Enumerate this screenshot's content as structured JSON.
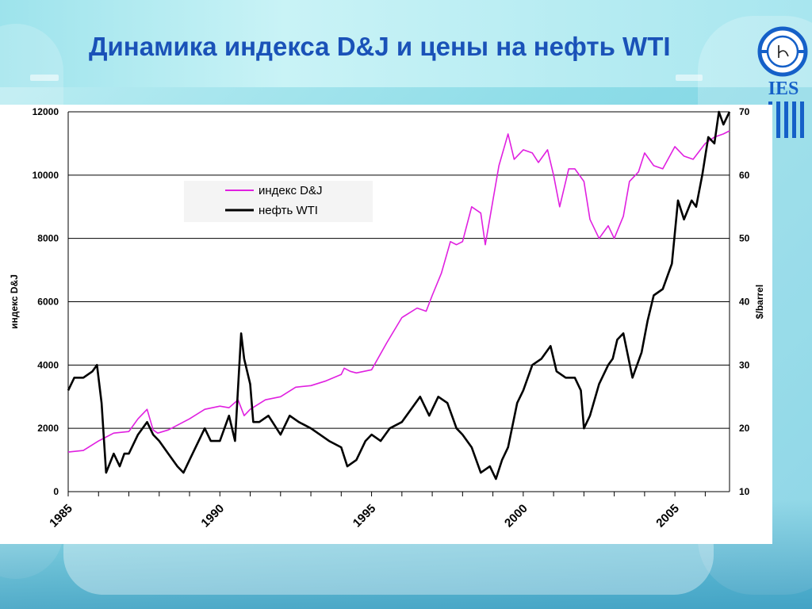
{
  "slide": {
    "title": "Динамика индекса D&J и цены на нефть WTI",
    "logo_text": "IES"
  },
  "colors": {
    "title": "#1a52b8",
    "dj_series": "#e020e0",
    "wti_series": "#000000",
    "logo_blue": "#1560c8"
  },
  "icons": {
    "logo": "ies-logo-icon"
  },
  "chart_data": {
    "type": "line",
    "title": "",
    "xlabel": "",
    "ylabel_left": "индекс D&J",
    "ylabel_right": "$/barrel",
    "xlim": [
      1985.0,
      2006.8
    ],
    "ylim_left": [
      0,
      12000
    ],
    "ylim_right": [
      10,
      70
    ],
    "yticks_left": [
      0,
      2000,
      4000,
      6000,
      8000,
      10000,
      12000
    ],
    "yticks_right": [
      10,
      20,
      30,
      40,
      50,
      60,
      70
    ],
    "xtick_labels": [
      "1985",
      "1990",
      "1995",
      "2000",
      "2005"
    ],
    "xtick_values": [
      1985,
      1990,
      1995,
      2000,
      2005
    ],
    "grid": "horizontal",
    "legend_position": "upper-left",
    "series": [
      {
        "name": "индекс D&J",
        "axis": "left",
        "x": [
          1985.0,
          1985.5,
          1986.0,
          1986.5,
          1987.0,
          1987.3,
          1987.6,
          1987.8,
          1987.95,
          1988.3,
          1988.6,
          1989.0,
          1989.5,
          1990.0,
          1990.3,
          1990.6,
          1990.8,
          1991.0,
          1991.5,
          1992.0,
          1992.5,
          1993.0,
          1993.5,
          1994.0,
          1994.1,
          1994.3,
          1994.5,
          1995.0,
          1995.5,
          1996.0,
          1996.5,
          1996.8,
          1997.0,
          1997.3,
          1997.6,
          1997.8,
          1998.0,
          1998.3,
          1998.6,
          1998.75,
          1999.0,
          1999.2,
          1999.5,
          1999.7,
          2000.0,
          2000.3,
          2000.5,
          2000.8,
          2001.0,
          2001.2,
          2001.5,
          2001.7,
          2002.0,
          2002.2,
          2002.5,
          2002.8,
          2003.0,
          2003.3,
          2003.5,
          2003.8,
          2004.0,
          2004.3,
          2004.6,
          2005.0,
          2005.3,
          2005.6,
          2006.0,
          2006.3,
          2006.6,
          2006.8
        ],
        "y": [
          1250,
          1300,
          1600,
          1850,
          1900,
          2300,
          2600,
          1950,
          1850,
          1950,
          2100,
          2300,
          2600,
          2700,
          2650,
          2900,
          2400,
          2600,
          2900,
          3000,
          3300,
          3350,
          3500,
          3700,
          3900,
          3800,
          3750,
          3850,
          4700,
          5500,
          5800,
          5700,
          6200,
          6900,
          7900,
          7800,
          7900,
          9000,
          8800,
          7800,
          9200,
          10300,
          11300,
          10500,
          10800,
          10700,
          10400,
          10800,
          10000,
          9000,
          10200,
          10200,
          9800,
          8600,
          8000,
          8400,
          8000,
          8700,
          9800,
          10100,
          10700,
          10300,
          10200,
          10900,
          10600,
          10500,
          11000,
          11200,
          11300,
          11400
        ]
      },
      {
        "name": "нефть WTI",
        "axis": "right",
        "x": [
          1985.0,
          1985.2,
          1985.5,
          1985.8,
          1985.95,
          1986.1,
          1986.25,
          1986.5,
          1986.7,
          1986.85,
          1987.0,
          1987.3,
          1987.6,
          1987.8,
          1988.0,
          1988.3,
          1988.6,
          1988.8,
          1989.0,
          1989.2,
          1989.5,
          1989.7,
          1990.0,
          1990.3,
          1990.5,
          1990.7,
          1990.8,
          1991.0,
          1991.1,
          1991.3,
          1991.6,
          1992.0,
          1992.3,
          1992.6,
          1993.0,
          1993.3,
          1993.6,
          1994.0,
          1994.2,
          1994.5,
          1994.8,
          1995.0,
          1995.3,
          1995.6,
          1996.0,
          1996.3,
          1996.6,
          1996.9,
          1997.2,
          1997.5,
          1997.8,
          1998.0,
          1998.3,
          1998.6,
          1998.9,
          1999.1,
          1999.3,
          1999.5,
          1999.8,
          2000.0,
          2000.3,
          2000.6,
          2000.9,
          2001.1,
          2001.4,
          2001.7,
          2001.9,
          2002.0,
          2002.2,
          2002.5,
          2002.8,
          2002.95,
          2003.1,
          2003.3,
          2003.6,
          2003.9,
          2004.1,
          2004.3,
          2004.6,
          2004.9,
          2005.1,
          2005.3,
          2005.55,
          2005.7,
          2005.9,
          2006.1,
          2006.3,
          2006.45,
          2006.6,
          2006.8
        ],
        "y": [
          26,
          28,
          28,
          29,
          30,
          24,
          13,
          16,
          14,
          16,
          16,
          19,
          21,
          19,
          18,
          16,
          14,
          13,
          15,
          17,
          20,
          18,
          18,
          22,
          18,
          35,
          31,
          27,
          21,
          21,
          22,
          19,
          22,
          21,
          20,
          19,
          18,
          17,
          14,
          15,
          18,
          19,
          18,
          20,
          21,
          23,
          25,
          22,
          25,
          24,
          20,
          19,
          17,
          13,
          14,
          12,
          15,
          17,
          24,
          26,
          30,
          31,
          33,
          29,
          28,
          28,
          26,
          20,
          22,
          27,
          30,
          31,
          34,
          35,
          28,
          32,
          37,
          41,
          42,
          46,
          56,
          53,
          56,
          55,
          60,
          66,
          65,
          70,
          68,
          70
        ]
      }
    ]
  }
}
